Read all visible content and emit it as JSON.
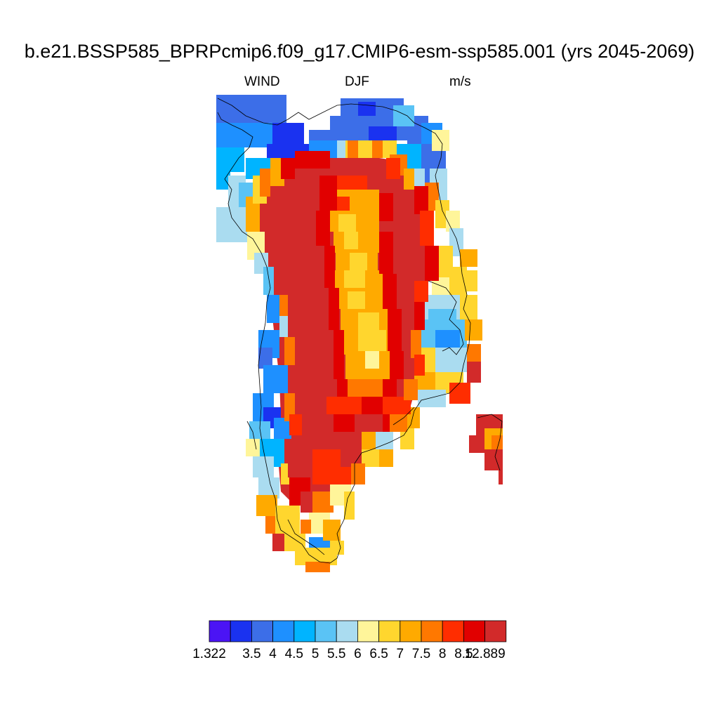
{
  "title": "b.e21.BSSP585_BPRPcmip6.f09_g17.CMIP6-esm-ssp585.001 (yrs 2045-2069)",
  "left_label": "WIND",
  "center_label": "DJF",
  "right_label": "m/s",
  "colorbar": {
    "colors": [
      "#4b14f5",
      "#1a32f0",
      "#3c6ee8",
      "#1e90ff",
      "#00b4ff",
      "#5ac3f5",
      "#aadcf0",
      "#fff59a",
      "#ffd62e",
      "#ffaa00",
      "#ff7800",
      "#ff2d00",
      "#e10000",
      "#d22a2a"
    ],
    "labels": [
      "1.322",
      "3.5",
      "4",
      "4.5",
      "5",
      "5.5",
      "6",
      "6.5",
      "7",
      "7.5",
      "8",
      "8.5",
      "12.889"
    ]
  },
  "chart_data": {
    "type": "heatmap",
    "variable": "WIND",
    "season": "DJF",
    "units": "m/s",
    "levels": [
      1.322,
      3.5,
      4,
      4.5,
      5,
      5.5,
      6,
      6.5,
      7,
      7.5,
      8,
      8.5,
      12.889
    ],
    "region_note": "Greenland field; interior (ice sheet) winds 8.5–12.889 m/s, central ridge band 6.5–8 m/s, coastal cells 1.3–6 m/s"
  }
}
